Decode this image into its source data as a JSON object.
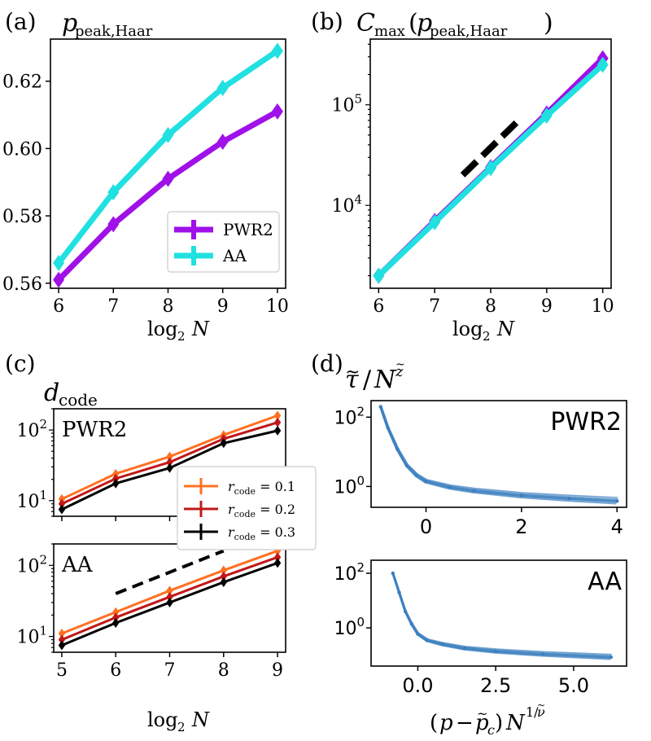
{
  "figure": {
    "panel_labels": [
      "(a)",
      "(b)",
      "(c)",
      "(d)"
    ]
  },
  "chart_data": [
    {
      "id": "a",
      "type": "line",
      "title": "p_peak,Haar",
      "xlabel": "log2 N",
      "ylabel": "",
      "x": [
        6,
        7,
        8,
        9,
        10
      ],
      "xlim": [
        5.85,
        10.15
      ],
      "ylim": [
        0.5585,
        0.6325
      ],
      "xticks": [
        "6",
        "7",
        "8",
        "9",
        "10"
      ],
      "yticks": [
        "0.56",
        "0.58",
        "0.60",
        "0.62"
      ],
      "ytick_values": [
        0.56,
        0.58,
        0.6,
        0.62
      ],
      "series": [
        {
          "name": "PWR2",
          "color": "#a010e8",
          "values": [
            0.561,
            0.5775,
            0.591,
            0.602,
            0.611
          ]
        },
        {
          "name": "AA",
          "color": "#20e0e0",
          "values": [
            0.566,
            0.587,
            0.604,
            0.618,
            0.629
          ]
        }
      ],
      "legend_position": "lower-right"
    },
    {
      "id": "b",
      "type": "line",
      "title": "C_max (p_peak,Haar)",
      "xlabel": "log2 N",
      "yscale": "log",
      "x": [
        6,
        7,
        8,
        9,
        10
      ],
      "xlim": [
        5.85,
        10.15
      ],
      "ylim": [
        1500,
        450000
      ],
      "xticks": [
        "6",
        "7",
        "8",
        "9",
        "10"
      ],
      "yticks": [
        "10^4",
        "10^5"
      ],
      "series": [
        {
          "name": "PWR2",
          "color": "#a010e8",
          "values": [
            2000,
            7000,
            24000,
            82000,
            290000
          ]
        },
        {
          "name": "AA",
          "color": "#20e0e0",
          "values": [
            2000,
            6800,
            23500,
            78000,
            250000
          ]
        }
      ],
      "guide_line": {
        "x": [
          7.5,
          8.5
        ],
        "y": [
          20000,
          70000
        ]
      }
    },
    {
      "id": "c-top",
      "type": "line",
      "title": "d_code",
      "label": "PWR2",
      "xlabel": "",
      "yscale": "log",
      "x": [
        5,
        6,
        7,
        8,
        9
      ],
      "xlim": [
        4.85,
        9.15
      ],
      "ylim": [
        6,
        200
      ],
      "yticks": [
        "10^1",
        "10^2"
      ],
      "series": [
        {
          "name": "r_code = 0.1",
          "color": "#ff7020",
          "values": [
            10.5,
            24,
            42,
            85,
            160
          ]
        },
        {
          "name": "r_code = 0.2",
          "color": "#c01818",
          "values": [
            9,
            20.5,
            35,
            75,
            128
          ]
        },
        {
          "name": "r_code = 0.3",
          "color": "#000000",
          "values": [
            7.5,
            17.5,
            29,
            65,
            98
          ]
        }
      ]
    },
    {
      "id": "c-bottom",
      "type": "line",
      "label": "AA",
      "xlabel": "log2 N",
      "yscale": "log",
      "x": [
        5,
        6,
        7,
        8,
        9
      ],
      "xlim": [
        4.85,
        9.15
      ],
      "ylim": [
        6,
        200
      ],
      "xticks": [
        "5",
        "6",
        "7",
        "8",
        "9"
      ],
      "yticks": [
        "10^1",
        "10^2"
      ],
      "series": [
        {
          "name": "r_code = 0.1",
          "color": "#ff7020",
          "values": [
            11,
            22,
            44,
            85,
            160
          ]
        },
        {
          "name": "r_code = 0.2",
          "color": "#c01818",
          "values": [
            9,
            18.5,
            36,
            70,
            130
          ]
        },
        {
          "name": "r_code = 0.3",
          "color": "#000000",
          "values": [
            7.5,
            15.5,
            30,
            58,
            108
          ]
        }
      ],
      "guide_line": {
        "x": [
          6,
          8
        ],
        "y": [
          40,
          160
        ]
      }
    },
    {
      "id": "d-top",
      "type": "scatter",
      "title": "tau~ / N^z~",
      "label": "PWR2",
      "yscale": "log",
      "xlim": [
        -1.15,
        4.2
      ],
      "ylim": [
        0.25,
        300
      ],
      "xticks": [
        "0",
        "2",
        "4"
      ],
      "yticks": [
        "10^0",
        "10^2"
      ],
      "color": "#3a7fbf",
      "curve": {
        "x": [
          -0.95,
          -0.8,
          -0.6,
          -0.4,
          -0.2,
          0,
          0.5,
          1,
          2,
          3,
          4
        ],
        "y": [
          200,
          50,
          12,
          4,
          2.1,
          1.4,
          0.95,
          0.75,
          0.55,
          0.45,
          0.38
        ]
      }
    },
    {
      "id": "d-bottom",
      "type": "scatter",
      "label": "AA",
      "yscale": "log",
      "xlabel": "(p - p~_c) N^(1/nu~)",
      "xlim": [
        -1.5,
        6.7
      ],
      "ylim": [
        0.04,
        300
      ],
      "xticks": [
        "0.0",
        "2.5",
        "5.0"
      ],
      "yticks": [
        "10^0",
        "10^2"
      ],
      "color": "#3a7fbf",
      "curve": {
        "x": [
          -0.8,
          -0.6,
          -0.4,
          -0.2,
          0,
          0.3,
          0.8,
          1.5,
          2.5,
          4,
          6.2
        ],
        "y": [
          100,
          20,
          4,
          1.4,
          0.6,
          0.35,
          0.25,
          0.18,
          0.14,
          0.11,
          0.085
        ]
      }
    }
  ]
}
